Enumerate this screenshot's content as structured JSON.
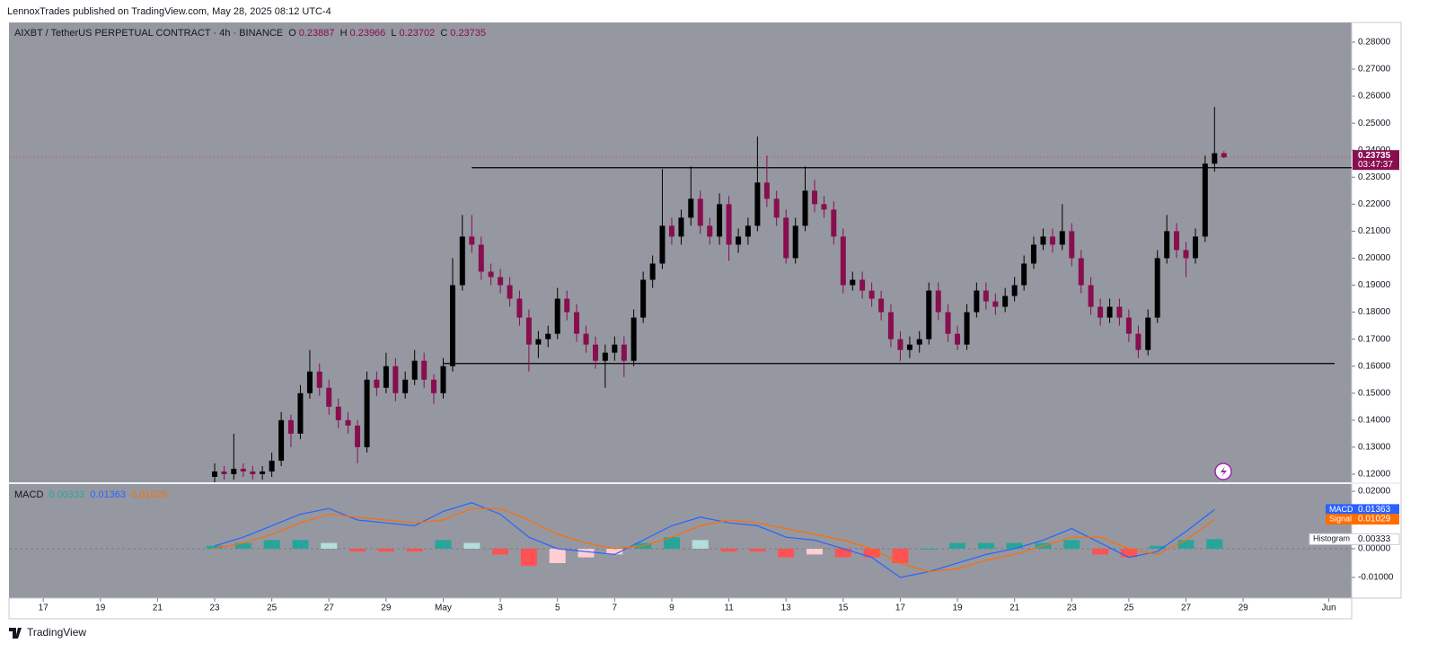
{
  "header": {
    "publisher": "LennoxTrades published on TradingView.com, May 28, 2025 08:12 UTC-4"
  },
  "chart_data": [
    {
      "type": "candlestick",
      "title": "AIXBT / TetherUS PERPETUAL CONTRACT · 4h · BINANCE",
      "ohlc_labels": [
        "O",
        "H",
        "L",
        "C"
      ],
      "colors": {
        "up": "#000000",
        "down": "#880e4f",
        "last_price": "#f23645"
      },
      "grid": false,
      "xlim": [
        -1.2,
        45.8
      ],
      "ylim": [
        0.117,
        0.2873
      ],
      "yticks": [
        {
          "value": 0.12,
          "label": "0.12000"
        },
        {
          "value": 0.13,
          "label": "0.13000"
        },
        {
          "value": 0.14,
          "label": "0.14000"
        },
        {
          "value": 0.15,
          "label": "0.15000"
        },
        {
          "value": 0.16,
          "label": "0.16000"
        },
        {
          "value": 0.17,
          "label": "0.17000"
        },
        {
          "value": 0.18,
          "label": "0.18000"
        },
        {
          "value": 0.19,
          "label": "0.19000"
        },
        {
          "value": 0.2,
          "label": "0.20000"
        },
        {
          "value": 0.21,
          "label": "0.21000"
        },
        {
          "value": 0.22,
          "label": "0.22000"
        },
        {
          "value": 0.23,
          "label": "0.23000"
        },
        {
          "value": 0.24,
          "label": "0.24000"
        },
        {
          "value": 0.25,
          "label": "0.25000"
        },
        {
          "value": 0.26,
          "label": "0.26000"
        },
        {
          "value": 0.27,
          "label": "0.27000"
        },
        {
          "value": 0.28,
          "label": "0.28000"
        }
      ],
      "countdown": "03:47:37",
      "hlines": [
        {
          "value": 0.2335,
          "x": [
            15.0,
            45.8
          ]
        },
        {
          "value": 0.161,
          "x": [
            14.0,
            45.2
          ]
        }
      ],
      "x": [
        6,
        6.33,
        6.67,
        7,
        7.33,
        7.67,
        8,
        8.33,
        8.67,
        9,
        9.33,
        9.67,
        10,
        10.33,
        10.67,
        11,
        11.33,
        11.67,
        12,
        12.33,
        12.67,
        13,
        13.33,
        13.67,
        14,
        14.33,
        14.67,
        15,
        15.33,
        15.67,
        16,
        16.33,
        16.67,
        17,
        17.33,
        17.67,
        18,
        18.33,
        18.67,
        19,
        19.33,
        19.67,
        20,
        20.33,
        20.67,
        21,
        21.33,
        21.67,
        22,
        22.33,
        22.67,
        23,
        23.33,
        23.67,
        24,
        24.33,
        24.67,
        25,
        25.33,
        25.67,
        26,
        26.33,
        26.67,
        27,
        27.33,
        27.67,
        28,
        28.33,
        28.67,
        29,
        29.33,
        29.67,
        30,
        30.33,
        30.67,
        31,
        31.33,
        31.67,
        32,
        32.33,
        32.67,
        33,
        33.33,
        33.67,
        34,
        34.33,
        34.67,
        35,
        35.33,
        35.67,
        36,
        36.33,
        36.67,
        37,
        37.33,
        37.67,
        38,
        38.33,
        38.67,
        39,
        39.33,
        39.67,
        40,
        40.33,
        40.67,
        41,
        41.33
      ],
      "candles": [
        [
          0.119,
          0.124,
          0.117,
          0.121
        ],
        [
          0.121,
          0.123,
          0.118,
          0.12
        ],
        [
          0.12,
          0.135,
          0.118,
          0.122
        ],
        [
          0.122,
          0.124,
          0.119,
          0.121
        ],
        [
          0.121,
          0.123,
          0.118,
          0.12
        ],
        [
          0.12,
          0.123,
          0.118,
          0.121
        ],
        [
          0.121,
          0.128,
          0.119,
          0.125
        ],
        [
          0.125,
          0.143,
          0.123,
          0.14
        ],
        [
          0.14,
          0.142,
          0.13,
          0.135
        ],
        [
          0.135,
          0.153,
          0.133,
          0.15
        ],
        [
          0.15,
          0.166,
          0.148,
          0.158
        ],
        [
          0.158,
          0.161,
          0.149,
          0.152
        ],
        [
          0.152,
          0.155,
          0.142,
          0.145
        ],
        [
          0.145,
          0.148,
          0.137,
          0.14
        ],
        [
          0.14,
          0.143,
          0.135,
          0.138
        ],
        [
          0.138,
          0.14,
          0.124,
          0.13
        ],
        [
          0.13,
          0.158,
          0.128,
          0.155
        ],
        [
          0.155,
          0.158,
          0.149,
          0.152
        ],
        [
          0.152,
          0.165,
          0.15,
          0.16
        ],
        [
          0.16,
          0.163,
          0.147,
          0.15
        ],
        [
          0.15,
          0.158,
          0.148,
          0.155
        ],
        [
          0.155,
          0.166,
          0.153,
          0.162
        ],
        [
          0.162,
          0.165,
          0.152,
          0.155
        ],
        [
          0.155,
          0.157,
          0.146,
          0.15
        ],
        [
          0.15,
          0.163,
          0.148,
          0.16
        ],
        [
          0.16,
          0.2,
          0.158,
          0.19
        ],
        [
          0.19,
          0.216,
          0.188,
          0.208
        ],
        [
          0.208,
          0.216,
          0.202,
          0.205
        ],
        [
          0.205,
          0.208,
          0.192,
          0.195
        ],
        [
          0.195,
          0.198,
          0.19,
          0.193
        ],
        [
          0.193,
          0.196,
          0.187,
          0.19
        ],
        [
          0.19,
          0.193,
          0.182,
          0.185
        ],
        [
          0.185,
          0.188,
          0.175,
          0.178
        ],
        [
          0.178,
          0.181,
          0.158,
          0.168
        ],
        [
          0.168,
          0.173,
          0.163,
          0.17
        ],
        [
          0.17,
          0.175,
          0.167,
          0.172
        ],
        [
          0.172,
          0.189,
          0.17,
          0.185
        ],
        [
          0.185,
          0.188,
          0.177,
          0.18
        ],
        [
          0.18,
          0.183,
          0.169,
          0.172
        ],
        [
          0.172,
          0.175,
          0.165,
          0.168
        ],
        [
          0.168,
          0.171,
          0.159,
          0.162
        ],
        [
          0.162,
          0.168,
          0.152,
          0.165
        ],
        [
          0.165,
          0.171,
          0.162,
          0.168
        ],
        [
          0.168,
          0.171,
          0.156,
          0.162
        ],
        [
          0.162,
          0.181,
          0.16,
          0.178
        ],
        [
          0.178,
          0.195,
          0.176,
          0.192
        ],
        [
          0.192,
          0.201,
          0.189,
          0.198
        ],
        [
          0.198,
          0.233,
          0.196,
          0.212
        ],
        [
          0.212,
          0.215,
          0.205,
          0.208
        ],
        [
          0.208,
          0.218,
          0.205,
          0.215
        ],
        [
          0.215,
          0.234,
          0.212,
          0.222
        ],
        [
          0.222,
          0.225,
          0.209,
          0.212
        ],
        [
          0.212,
          0.215,
          0.205,
          0.208
        ],
        [
          0.208,
          0.224,
          0.205,
          0.22
        ],
        [
          0.22,
          0.223,
          0.199,
          0.205
        ],
        [
          0.205,
          0.211,
          0.202,
          0.208
        ],
        [
          0.208,
          0.215,
          0.205,
          0.212
        ],
        [
          0.212,
          0.245,
          0.21,
          0.228
        ],
        [
          0.228,
          0.238,
          0.219,
          0.222
        ],
        [
          0.222,
          0.225,
          0.212,
          0.215
        ],
        [
          0.215,
          0.218,
          0.198,
          0.2
        ],
        [
          0.2,
          0.215,
          0.198,
          0.212
        ],
        [
          0.212,
          0.234,
          0.21,
          0.225
        ],
        [
          0.225,
          0.229,
          0.217,
          0.22
        ],
        [
          0.22,
          0.223,
          0.215,
          0.218
        ],
        [
          0.218,
          0.221,
          0.205,
          0.208
        ],
        [
          0.208,
          0.211,
          0.187,
          0.19
        ],
        [
          0.19,
          0.195,
          0.188,
          0.192
        ],
        [
          0.192,
          0.195,
          0.185,
          0.188
        ],
        [
          0.188,
          0.191,
          0.182,
          0.185
        ],
        [
          0.185,
          0.188,
          0.177,
          0.18
        ],
        [
          0.18,
          0.183,
          0.167,
          0.17
        ],
        [
          0.17,
          0.173,
          0.162,
          0.166
        ],
        [
          0.166,
          0.171,
          0.163,
          0.168
        ],
        [
          0.168,
          0.173,
          0.165,
          0.17
        ],
        [
          0.17,
          0.191,
          0.168,
          0.188
        ],
        [
          0.188,
          0.191,
          0.177,
          0.18
        ],
        [
          0.18,
          0.183,
          0.169,
          0.172
        ],
        [
          0.172,
          0.175,
          0.166,
          0.168
        ],
        [
          0.168,
          0.183,
          0.166,
          0.18
        ],
        [
          0.18,
          0.191,
          0.178,
          0.188
        ],
        [
          0.188,
          0.191,
          0.181,
          0.184
        ],
        [
          0.184,
          0.187,
          0.179,
          0.182
        ],
        [
          0.182,
          0.189,
          0.18,
          0.186
        ],
        [
          0.186,
          0.193,
          0.184,
          0.19
        ],
        [
          0.19,
          0.201,
          0.188,
          0.198
        ],
        [
          0.198,
          0.208,
          0.196,
          0.205
        ],
        [
          0.205,
          0.211,
          0.203,
          0.208
        ],
        [
          0.208,
          0.211,
          0.202,
          0.205
        ],
        [
          0.205,
          0.22,
          0.203,
          0.21
        ],
        [
          0.21,
          0.213,
          0.197,
          0.2
        ],
        [
          0.2,
          0.203,
          0.187,
          0.19
        ],
        [
          0.19,
          0.193,
          0.179,
          0.182
        ],
        [
          0.182,
          0.185,
          0.175,
          0.178
        ],
        [
          0.178,
          0.185,
          0.176,
          0.182
        ],
        [
          0.182,
          0.185,
          0.175,
          0.178
        ],
        [
          0.178,
          0.181,
          0.169,
          0.172
        ],
        [
          0.172,
          0.175,
          0.163,
          0.166
        ],
        [
          0.166,
          0.181,
          0.164,
          0.178
        ],
        [
          0.178,
          0.203,
          0.176,
          0.2
        ],
        [
          0.2,
          0.216,
          0.198,
          0.21
        ],
        [
          0.21,
          0.213,
          0.2,
          0.203
        ],
        [
          0.203,
          0.206,
          0.193,
          0.2
        ],
        [
          0.2,
          0.211,
          0.198,
          0.208
        ],
        [
          0.208,
          0.238,
          0.206,
          0.235
        ],
        [
          0.235,
          0.256,
          0.232,
          0.23887
        ],
        [
          0.23887,
          0.23966,
          0.23702,
          0.23735
        ]
      ]
    },
    {
      "type": "macd",
      "title": "MACD",
      "xlim": [
        -1.2,
        45.8
      ],
      "ylim": [
        -0.0172,
        0.0225
      ],
      "yticks": [
        {
          "value": 0.02,
          "label": "0.02000"
        },
        {
          "value": 0,
          "label": "0.00000"
        },
        {
          "value": -0.01,
          "label": "-0.01000"
        }
      ],
      "xticks": [
        {
          "value": 0,
          "label": "17"
        },
        {
          "value": 2,
          "label": "19"
        },
        {
          "value": 4,
          "label": "21"
        },
        {
          "value": 6,
          "label": "23"
        },
        {
          "value": 8,
          "label": "25"
        },
        {
          "value": 10,
          "label": "27"
        },
        {
          "value": 12,
          "label": "29"
        },
        {
          "value": 14,
          "label": "May"
        },
        {
          "value": 16,
          "label": "3"
        },
        {
          "value": 18,
          "label": "5"
        },
        {
          "value": 20,
          "label": "7"
        },
        {
          "value": 22,
          "label": "9"
        },
        {
          "value": 24,
          "label": "11"
        },
        {
          "value": 26,
          "label": "13"
        },
        {
          "value": 28,
          "label": "15"
        },
        {
          "value": 30,
          "label": "17"
        },
        {
          "value": 32,
          "label": "19"
        },
        {
          "value": 34,
          "label": "21"
        },
        {
          "value": 36,
          "label": "23"
        },
        {
          "value": 38,
          "label": "25"
        },
        {
          "value": 40,
          "label": "27"
        },
        {
          "value": 42,
          "label": "29"
        },
        {
          "value": 45,
          "label": "Jun"
        }
      ],
      "x": [
        6,
        7,
        8,
        9,
        10,
        11,
        12,
        13,
        14,
        15,
        16,
        17,
        18,
        19,
        20,
        21,
        22,
        23,
        24,
        25,
        26,
        27,
        28,
        29,
        30,
        31,
        32,
        33,
        34,
        35,
        36,
        37,
        38,
        39,
        40,
        41
      ],
      "series": [
        {
          "name": "MACD",
          "color": "#2962ff",
          "values": [
            0.001,
            0.004,
            0.008,
            0.012,
            0.014,
            0.01,
            0.009,
            0.008,
            0.013,
            0.016,
            0.012,
            0.004,
            0,
            -0.001,
            -0.002,
            0.003,
            0.008,
            0.011,
            0.009,
            0.008,
            0.004,
            0.003,
            0,
            -0.003,
            -0.01,
            -0.008,
            -0.005,
            -0.002,
            0,
            0.003,
            0.007,
            0.002,
            -0.003,
            -0.001,
            0.006,
            0.01363
          ]
        },
        {
          "name": "Signal",
          "color": "#ff6d00",
          "values": [
            0,
            0.002,
            0.005,
            0.009,
            0.012,
            0.011,
            0.01,
            0.009,
            0.01,
            0.014,
            0.014,
            0.01,
            0.005,
            0.002,
            0,
            0.001,
            0.004,
            0.008,
            0.01,
            0.009,
            0.007,
            0.005,
            0.003,
            0,
            -0.005,
            -0.008,
            -0.007,
            -0.004,
            -0.002,
            0.001,
            0.004,
            0.004,
            0,
            -0.002,
            0.003,
            0.01029
          ]
        },
        {
          "name": "Histogram",
          "colors": [
            "#26a69a",
            "#b2dfdb",
            "#ff5252",
            "#ffcdd2"
          ],
          "values": [
            0.001,
            0.002,
            0.003,
            0.003,
            0.002,
            -0.001,
            -0.001,
            -0.001,
            0.003,
            0.002,
            -0.002,
            -0.006,
            -0.005,
            -0.003,
            -0.002,
            0.002,
            0.004,
            0.003,
            -0.001,
            -0.001,
            -0.003,
            -0.002,
            -0.003,
            -0.003,
            -0.005,
            0,
            0.002,
            0.002,
            0.002,
            0.002,
            0.003,
            -0.002,
            -0.003,
            0.001,
            0.003,
            0.00333
          ]
        }
      ]
    }
  ],
  "footer": {
    "brand": "TradingView"
  }
}
